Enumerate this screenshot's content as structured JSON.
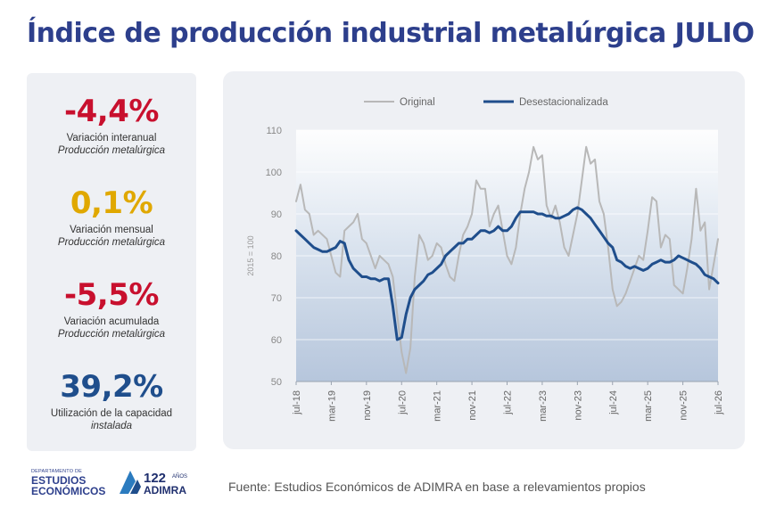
{
  "title": "Índice de producción industrial metalúrgica JULIO",
  "stats": [
    {
      "value": "-4,4%",
      "line1": "Variación interanual",
      "line2": "Producción metalúrgica",
      "color": "#c8102e"
    },
    {
      "value": "0,1%",
      "line1": "Variación mensual",
      "line2": "Producción metalúrgica",
      "color": "#e0a800"
    },
    {
      "value": "-5,5%",
      "line1": "Variación acumulada",
      "line2": "Producción metalúrgica",
      "color": "#c8102e"
    },
    {
      "value": "39,2%",
      "line1": "Utilización de la capacidad",
      "line2": "instalada",
      "color": "#1f4e8c"
    }
  ],
  "logos": {
    "estudios_small": "DEPARTAMENTO DE",
    "estudios_line1": "ESTUDIOS",
    "estudios_line2": "ECONÓMICOS",
    "adimra_number": "122",
    "adimra_years": "AÑOS",
    "adimra_name": "ADIMRA"
  },
  "source": "Fuente: Estudios Económicos de ADIMRA en base a relevamientos propios",
  "chart_data": {
    "type": "line",
    "ylabel": "2015 = 100",
    "ylim": [
      50,
      110
    ],
    "yticks": [
      50,
      60,
      70,
      80,
      90,
      100,
      110
    ],
    "x_tick_labels": [
      "jul-18",
      "mar-19",
      "nov-19",
      "jul-20",
      "mar-21",
      "nov-21",
      "jul-22",
      "mar-23",
      "nov-23",
      "jul-24",
      "mar-25",
      "nov-25",
      "jul-26"
    ],
    "x_start_label": "jul-18",
    "n_points": 97,
    "legend_position": "top",
    "series": [
      {
        "name": "Original",
        "color": "#b8b8b8",
        "values": [
          93,
          97,
          91,
          90,
          85,
          86,
          85,
          84,
          80,
          76,
          75,
          86,
          87,
          88,
          90,
          84,
          83,
          80,
          77,
          80,
          79,
          78,
          75,
          66,
          57,
          52,
          58,
          75,
          85,
          83,
          79,
          80,
          83,
          82,
          78,
          75,
          74,
          80,
          85,
          87,
          90,
          98,
          96,
          96,
          87,
          90,
          92,
          86,
          80,
          78,
          82,
          90,
          96,
          100,
          106,
          103,
          104,
          92,
          89,
          92,
          88,
          82,
          80,
          85,
          90,
          98,
          106,
          102,
          103,
          93,
          90,
          82,
          72,
          68,
          69,
          71,
          74,
          77,
          80,
          79,
          86,
          94,
          93,
          82,
          85,
          84,
          73,
          72,
          71,
          77,
          84,
          96,
          86,
          88,
          72,
          78,
          84
        ]
      },
      {
        "name": "Desestacionalizada",
        "color": "#1f4e8c",
        "values": [
          86,
          85,
          84,
          83,
          82,
          81.5,
          81,
          81,
          81.5,
          82,
          83.5,
          83,
          79,
          77,
          76,
          75,
          75,
          74.5,
          74.5,
          74,
          74.5,
          74.5,
          68,
          60,
          60.5,
          66,
          70,
          72,
          73,
          74,
          75.5,
          76,
          77,
          78,
          80,
          81,
          82,
          83,
          83,
          84,
          84,
          85,
          86,
          86,
          85.5,
          86,
          87,
          86,
          86,
          87,
          89,
          90.5,
          90.5,
          90.5,
          90.5,
          90,
          90,
          89.5,
          89.5,
          89,
          89,
          89.5,
          90,
          91,
          91.5,
          91,
          90,
          89,
          87.5,
          86,
          84.5,
          83,
          82,
          79,
          78.5,
          77.5,
          77,
          77.5,
          77,
          76.5,
          77,
          78,
          78.5,
          79,
          78.5,
          78.5,
          79,
          80,
          79.5,
          79,
          78.5,
          78,
          77,
          75.5,
          75,
          74.5,
          73.5
        ]
      }
    ]
  }
}
